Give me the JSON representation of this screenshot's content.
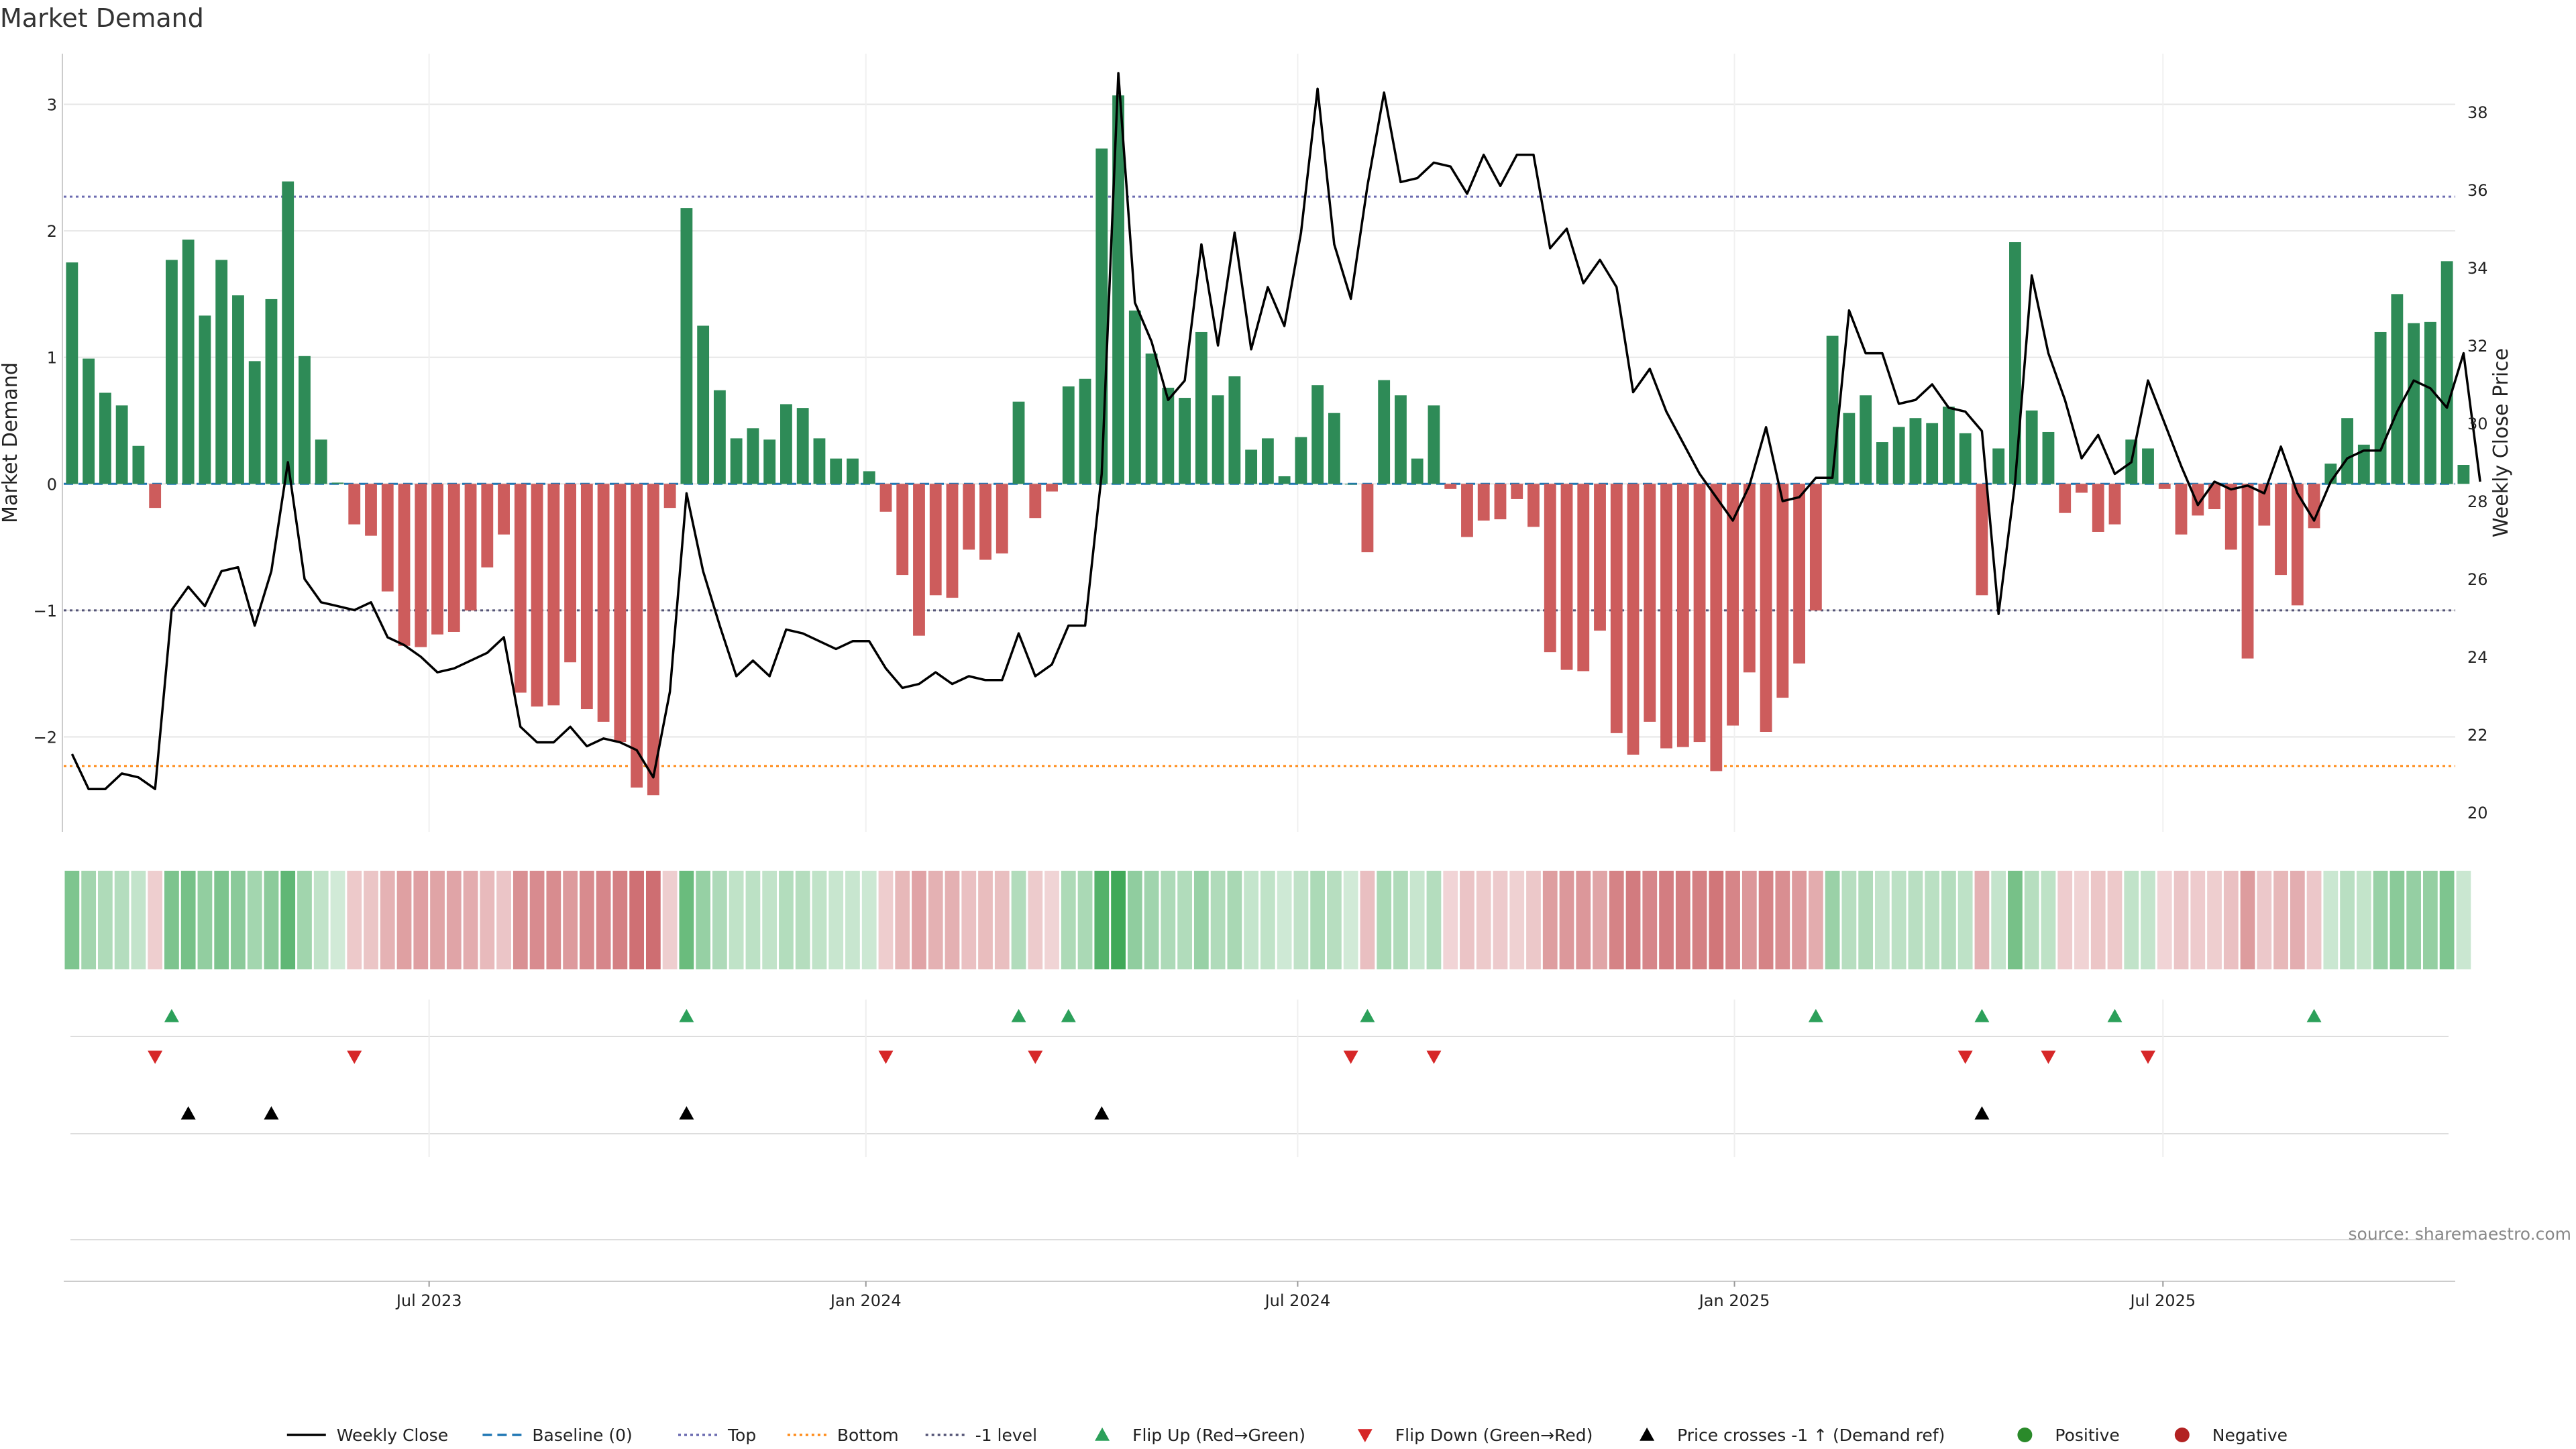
{
  "chart_data": {
    "type": "bar",
    "title": "Market Demand",
    "ylabel_left": "Market Demand",
    "ylabel_right": "Weekly Close Price",
    "y_left_ticks": [
      3,
      2,
      1,
      0,
      -1,
      -2
    ],
    "y_left_tick_labels": [
      "3",
      "2",
      "1",
      "0",
      "−1",
      "−2"
    ],
    "y_left_range": [
      -2.75,
      3.4
    ],
    "y_right_ticks": [
      38,
      36,
      34,
      32,
      30,
      28,
      26,
      24,
      22,
      20
    ],
    "y_right_range": [
      19.5,
      39.5
    ],
    "x_range_weeks": [
      0,
      144
    ],
    "x_ticks": [
      {
        "label": "Jul 2023",
        "week": 22
      },
      {
        "label": "Jan 2024",
        "week": 48.3
      },
      {
        "label": "Jul 2024",
        "week": 74.3
      },
      {
        "label": "Jan 2025",
        "week": 100.6
      },
      {
        "label": "Jul 2025",
        "week": 126.4
      }
    ],
    "reference_lines": {
      "top": 2.27,
      "bottom": -2.23,
      "minus_one_level": -1,
      "baseline": 0
    },
    "series": [
      {
        "name": "Market Demand",
        "values": [
          1.75,
          0.99,
          0.72,
          0.62,
          0.3,
          -0.19,
          1.77,
          1.93,
          1.33,
          1.77,
          1.49,
          0.97,
          1.46,
          2.39,
          1.01,
          0.35,
          0.01,
          -0.32,
          -0.41,
          -0.85,
          -1.28,
          -1.29,
          -1.19,
          -1.17,
          -1.0,
          -0.66,
          -0.4,
          -1.65,
          -1.76,
          -1.75,
          -1.41,
          -1.78,
          -1.88,
          -2.04,
          -2.4,
          -2.46,
          -0.19,
          2.18,
          1.25,
          0.74,
          0.36,
          0.44,
          0.35,
          0.63,
          0.6,
          0.36,
          0.2,
          0.2,
          0.1,
          -0.22,
          -0.72,
          -1.2,
          -0.88,
          -0.9,
          -0.52,
          -0.6,
          -0.55,
          0.65,
          -0.27,
          -0.06,
          0.77,
          0.83,
          2.65,
          3.07,
          1.37,
          1.03,
          0.76,
          0.68,
          1.2,
          0.7,
          0.85,
          0.27,
          0.36,
          0.06,
          0.37,
          0.78,
          0.56,
          0.0,
          -0.54,
          0.82,
          0.7,
          0.2,
          0.62,
          -0.04,
          -0.42,
          -0.29,
          -0.28,
          -0.12,
          -0.34,
          -1.33,
          -1.47,
          -1.48,
          -1.16,
          -1.97,
          -2.14,
          -1.88,
          -2.09,
          -2.08,
          -2.04,
          -2.27,
          -1.91,
          -1.49,
          -1.96,
          -1.69,
          -1.42,
          -1.0,
          1.17,
          0.56,
          0.7,
          0.33,
          0.45,
          0.52,
          0.48,
          0.61,
          0.4,
          -0.88,
          0.28,
          1.91,
          0.58,
          0.41,
          -0.23,
          -0.07,
          -0.38,
          -0.32,
          0.35,
          0.28,
          -0.04,
          -0.4,
          -0.25,
          -0.2,
          -0.52,
          -1.38,
          -0.33,
          -0.72,
          -0.96,
          -0.35,
          0.16,
          0.52,
          0.31,
          1.2,
          1.5,
          1.27,
          1.28,
          1.76,
          0.15
        ]
      },
      {
        "name": "Weekly Close",
        "values": [
          21.5,
          20.6,
          20.6,
          21.0,
          20.9,
          20.6,
          25.2,
          25.8,
          25.3,
          26.2,
          26.3,
          24.8,
          26.2,
          29.0,
          26.0,
          25.4,
          25.3,
          25.2,
          25.4,
          24.5,
          24.3,
          24.0,
          23.6,
          23.7,
          23.9,
          24.1,
          24.5,
          22.2,
          21.8,
          21.8,
          22.2,
          21.7,
          21.9,
          21.8,
          21.6,
          20.9,
          23.1,
          28.2,
          26.2,
          24.8,
          23.5,
          23.9,
          23.5,
          24.7,
          24.6,
          24.4,
          24.2,
          24.4,
          24.4,
          23.7,
          23.2,
          23.3,
          23.6,
          23.3,
          23.5,
          23.4,
          23.4,
          24.6,
          23.5,
          23.8,
          24.8,
          24.8,
          28.7,
          39.0,
          33.1,
          32.1,
          30.6,
          31.1,
          34.6,
          32.0,
          34.9,
          31.9,
          33.5,
          32.5,
          34.9,
          38.6,
          34.6,
          33.2,
          36.1,
          38.5,
          36.2,
          36.3,
          36.7,
          36.6,
          35.9,
          36.9,
          36.1,
          36.9,
          36.9,
          34.5,
          35.0,
          33.6,
          34.2,
          33.5,
          30.8,
          31.4,
          30.3,
          29.5,
          28.7,
          28.1,
          27.5,
          28.4,
          29.9,
          28.0,
          28.1,
          28.6,
          28.6,
          32.9,
          31.8,
          31.8,
          30.5,
          30.6,
          31.0,
          30.4,
          30.3,
          29.8,
          25.1,
          28.5,
          33.8,
          31.8,
          30.6,
          29.1,
          29.7,
          28.7,
          29.0,
          31.1,
          30.0,
          28.9,
          27.9,
          28.5,
          28.3,
          28.4,
          28.2,
          29.4,
          28.2,
          27.5,
          28.5,
          29.1,
          29.3,
          29.3,
          30.3,
          31.1,
          30.9,
          30.4,
          31.8,
          28.5
        ]
      }
    ],
    "color_strip_intensity": "derived from Market Demand magnitude (green = positive, red = negative)",
    "flip_up_weeks": [
      6,
      37,
      57,
      60,
      78,
      105,
      115,
      123,
      135
    ],
    "flip_down_weeks": [
      5,
      17,
      49,
      58,
      77,
      82,
      114,
      119,
      125
    ],
    "price_cross_weeks": [
      7,
      12,
      37,
      62,
      115
    ],
    "legend": [
      {
        "label": "Weekly Close",
        "kind": "solid-line",
        "color": "#000000"
      },
      {
        "label": "Baseline (0)",
        "kind": "dashed-line",
        "color": "#1f77b4"
      },
      {
        "label": "Top",
        "kind": "dotted-line",
        "color": "#6b6bb0"
      },
      {
        "label": "Bottom",
        "kind": "dotted-line",
        "color": "#ff8c1a"
      },
      {
        "label": "-1 level",
        "kind": "dotted-line",
        "color": "#555577"
      },
      {
        "label": "Flip Up (Red→Green)",
        "kind": "triangle-up",
        "color": "#2ca05a"
      },
      {
        "label": "Flip Down (Green→Red)",
        "kind": "triangle-down",
        "color": "#d62728"
      },
      {
        "label": "Price crosses -1 ↑ (Demand ref)",
        "kind": "triangle-up",
        "color": "#000000"
      },
      {
        "label": "Positive",
        "kind": "dot",
        "color": "#2a8a2a"
      },
      {
        "label": "Negative",
        "kind": "dot",
        "color": "#b22222"
      }
    ],
    "legend_position": "bottom-center",
    "source_label": "source: sharemaestro.com",
    "colors": {
      "positive_bar": "#2e8b57",
      "negative_bar": "#cd5c5c",
      "price_line": "#000000",
      "grid": "#e6e6e6"
    }
  }
}
